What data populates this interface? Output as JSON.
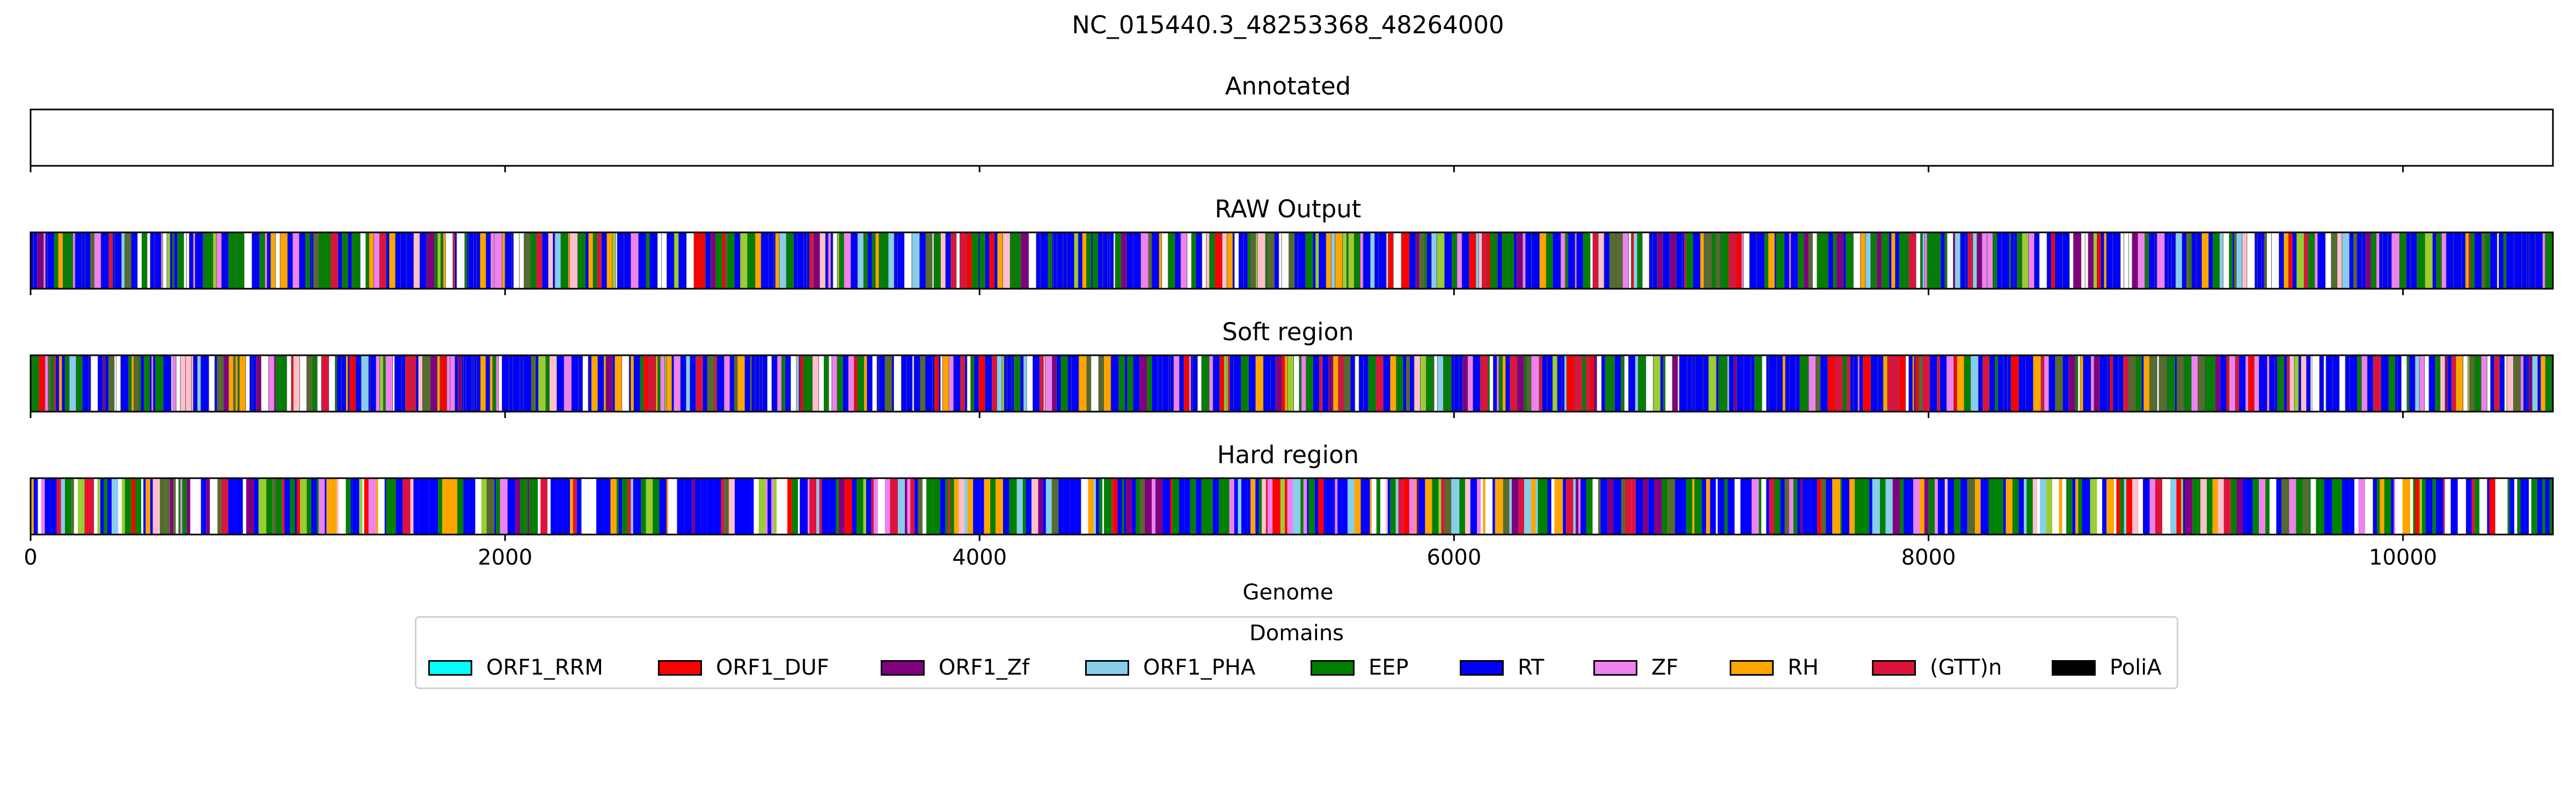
{
  "chart_data": {
    "type": "bar",
    "title": "NC_015440.3_48253368_48264000",
    "xlabel": "Genome",
    "xlim": [
      0,
      10632
    ],
    "xticks": [
      0,
      2000,
      4000,
      6000,
      8000,
      10000
    ],
    "xtick_labels": [
      "0",
      "2000",
      "4000",
      "6000",
      "8000",
      "10000"
    ],
    "panels": [
      {
        "title": "Annotated",
        "segments": []
      },
      {
        "title": "RAW Output",
        "seed": 11,
        "outlined": true
      },
      {
        "title": "Soft region",
        "seed": 23,
        "outlined": true
      },
      {
        "title": "Hard region",
        "seed": 37,
        "outlined": false
      }
    ],
    "legend": {
      "title": "Domains",
      "placement": "lower-center",
      "entries": [
        {
          "label": "ORF1_RRM",
          "color": "#00ffff"
        },
        {
          "label": "ORF1_DUF",
          "color": "#ff0000"
        },
        {
          "label": "ORF1_Zf",
          "color": "#800080"
        },
        {
          "label": "ORF1_PHA",
          "color": "#87ceeb"
        },
        {
          "label": "EEP",
          "color": "#008000"
        },
        {
          "label": "RT",
          "color": "#0000ff"
        },
        {
          "label": "ZF",
          "color": "#ee82ee"
        },
        {
          "label": "RH",
          "color": "#ffa500"
        },
        {
          "label": "(GTT)n",
          "color": "#dc143c"
        },
        {
          "label": "PoliA",
          "color": "#000000"
        }
      ]
    },
    "segment_palette": [
      "#0000ff",
      "#008000",
      "#ffffff",
      "#ffa500",
      "#ee82ee",
      "#dc143c",
      "#ff0000",
      "#800080",
      "#87ceeb",
      "#556b2f",
      "#ffc0cb",
      "#9acd32"
    ],
    "segment_weights": [
      34,
      18,
      10,
      6,
      6,
      5,
      4,
      4,
      3,
      4,
      3,
      3
    ]
  }
}
